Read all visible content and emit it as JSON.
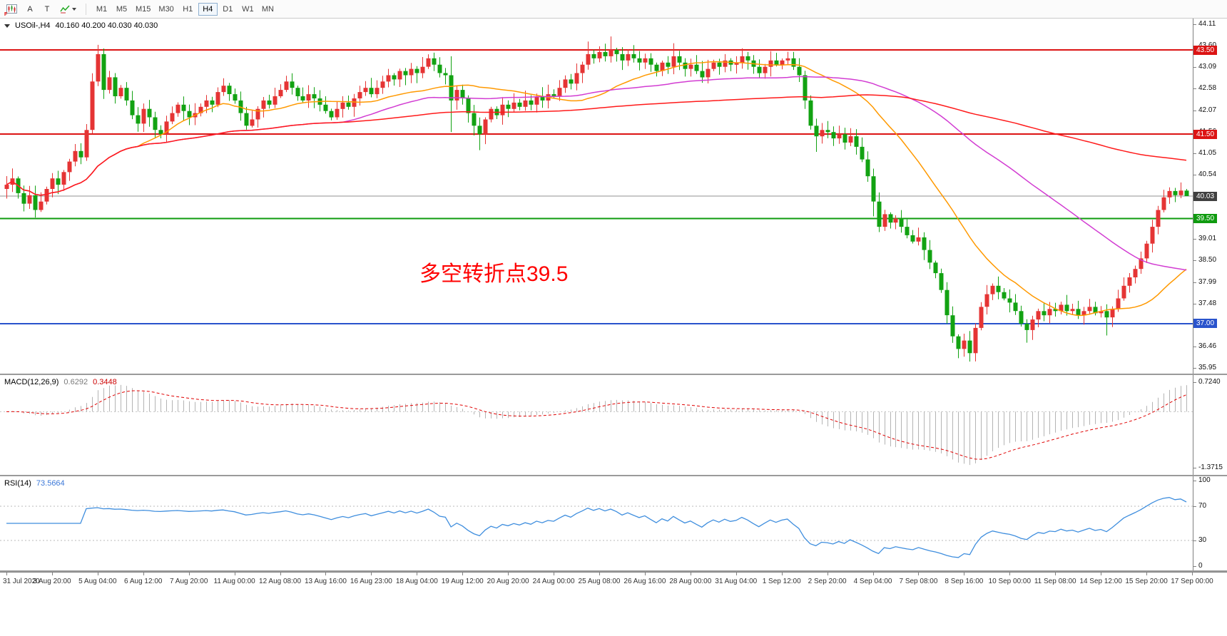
{
  "toolbar": {
    "tool_buttons": [
      {
        "name": "chart-window"
      },
      {
        "name": "cursor",
        "label": "A"
      },
      {
        "name": "text",
        "label": "T"
      },
      {
        "name": "indicators"
      }
    ],
    "corner_badge": "F",
    "timeframes": [
      "M1",
      "M5",
      "M15",
      "M30",
      "H1",
      "H4",
      "D1",
      "W1",
      "MN"
    ],
    "active_timeframe": "H4"
  },
  "main_chart": {
    "title": "USOil-,H4",
    "ohlc_text": "40.160 40.200 40.030 40.030",
    "annotation": {
      "text": "多空转折点39.5",
      "color": "#ff0000"
    },
    "price_scale_labels": [
      "44.11",
      "43.60",
      "43.09",
      "42.58",
      "42.07",
      "41.56",
      "41.05",
      "40.54",
      "40.03",
      "39.52",
      "39.01",
      "38.50",
      "37.99",
      "37.48",
      "36.97",
      "36.46",
      "35.95"
    ],
    "levels": [
      {
        "value": 43.5,
        "label": "43.50",
        "color": "#dc1414",
        "width": 2
      },
      {
        "value": 41.5,
        "label": "41.50",
        "color": "#dc1414",
        "width": 2
      },
      {
        "value": 39.5,
        "label": "39.50",
        "color": "#0f9b0f",
        "width": 2
      },
      {
        "value": 37.0,
        "label": "37.00",
        "color": "#2953cc",
        "width": 2
      }
    ],
    "current_price": {
      "value": 40.03,
      "label": "40.03",
      "color": "#404040"
    }
  },
  "macd_panel": {
    "label": "MACD(12,26,9)",
    "values": [
      "0.6292",
      "0.3448"
    ],
    "axis_labels": [
      {
        "value": 0.724,
        "text": "0.7240"
      },
      {
        "value": -1.3715,
        "text": "-1.3715"
      }
    ],
    "colors": {
      "histogram": "#b4b4b4",
      "signal": "#e00000"
    }
  },
  "rsi_panel": {
    "label": "RSI(14)",
    "value": "73.5664",
    "axis_labels": [
      {
        "value": 100,
        "text": "100"
      },
      {
        "value": 70,
        "text": "70"
      },
      {
        "value": 30,
        "text": "30"
      },
      {
        "value": 0,
        "text": "0"
      }
    ],
    "color": "#3f8ede"
  },
  "chart_data": {
    "type": "candlestick",
    "symbol": "USOil-",
    "timeframe": "H4",
    "ylim": [
      35.95,
      44.11
    ],
    "up_color": "#e53434",
    "down_color": "#12a212",
    "closes": [
      40.3,
      40.45,
      40.1,
      39.85,
      40.05,
      39.7,
      39.9,
      40.2,
      40.45,
      40.3,
      40.6,
      40.85,
      41.1,
      40.95,
      41.6,
      42.75,
      43.4,
      42.55,
      42.85,
      42.4,
      42.6,
      42.3,
      41.95,
      41.75,
      42.1,
      41.9,
      41.6,
      41.5,
      41.8,
      42.0,
      42.2,
      42.05,
      41.9,
      42.0,
      42.15,
      42.3,
      42.2,
      42.5,
      42.65,
      42.45,
      42.3,
      42.0,
      41.7,
      41.85,
      42.1,
      42.3,
      42.2,
      42.4,
      42.55,
      42.75,
      42.6,
      42.4,
      42.3,
      42.45,
      42.35,
      42.2,
      42.05,
      41.9,
      42.1,
      42.25,
      42.15,
      42.35,
      42.5,
      42.6,
      42.45,
      42.6,
      42.75,
      42.9,
      42.8,
      43.0,
      42.9,
      43.05,
      42.95,
      43.1,
      43.3,
      43.15,
      42.95,
      42.9,
      42.3,
      42.55,
      42.35,
      42.0,
      41.7,
      41.5,
      41.85,
      42.1,
      41.95,
      42.2,
      42.1,
      42.25,
      42.15,
      42.3,
      42.2,
      42.4,
      42.3,
      42.45,
      42.4,
      42.6,
      42.8,
      42.7,
      42.95,
      43.15,
      43.4,
      43.3,
      43.45,
      43.35,
      43.5,
      43.4,
      43.25,
      43.4,
      43.3,
      43.2,
      43.3,
      43.15,
      43.0,
      43.2,
      43.1,
      43.35,
      43.2,
      43.05,
      43.15,
      43.0,
      42.85,
      43.05,
      43.2,
      43.1,
      43.25,
      43.15,
      43.2,
      43.35,
      43.25,
      43.1,
      42.95,
      43.1,
      43.25,
      43.15,
      43.25,
      43.3,
      43.1,
      42.9,
      42.3,
      41.7,
      41.45,
      41.6,
      41.55,
      41.4,
      41.5,
      41.3,
      41.45,
      41.2,
      40.9,
      40.5,
      39.9,
      39.3,
      39.6,
      39.4,
      39.5,
      39.3,
      39.1,
      38.95,
      39.05,
      38.75,
      38.45,
      38.2,
      37.8,
      37.2,
      36.7,
      36.4,
      36.6,
      36.3,
      36.9,
      37.4,
      37.7,
      37.9,
      37.75,
      37.6,
      37.5,
      37.3,
      37.0,
      36.85,
      37.1,
      37.3,
      37.2,
      37.35,
      37.3,
      37.45,
      37.3,
      37.35,
      37.2,
      37.3,
      37.4,
      37.25,
      37.3,
      37.15,
      37.35,
      37.6,
      37.9,
      38.1,
      38.3,
      38.55,
      38.9,
      39.3,
      39.7,
      40.0,
      40.15,
      40.05,
      40.16,
      40.03
    ],
    "overrides": {
      "5": {
        "low": 39.52
      },
      "16": {
        "high": 43.62
      },
      "78": {
        "high": 43.35,
        "low": 41.55
      },
      "83": {
        "low": 41.12
      },
      "102": {
        "high": 43.7
      },
      "106": {
        "high": 43.82
      },
      "117": {
        "high": 43.66
      },
      "142": {
        "low": 41.08
      },
      "152": {
        "low": 39.55
      },
      "167": {
        "low": 36.18
      },
      "169": {
        "low": 36.1
      },
      "179": {
        "low": 36.55
      },
      "193": {
        "low": 36.72
      },
      "207": {
        "open": 40.16,
        "high": 40.2,
        "low": 40.03,
        "close": 40.03
      }
    },
    "ma": [
      {
        "period": 24,
        "color": "#ff9900",
        "name": "fast"
      },
      {
        "period": 60,
        "color": "#d23cd2",
        "name": "mid"
      },
      {
        "period": 144,
        "color": "#ff1a1a",
        "name": "slow"
      }
    ],
    "macd": {
      "fast": 12,
      "slow": 26,
      "signal": 9
    },
    "rsi": {
      "period": 14,
      "levels": [
        70,
        30
      ]
    },
    "x_labels": [
      "31 Jul 2020",
      "3 Aug 20:00",
      "5 Aug 04:00",
      "6 Aug 12:00",
      "7 Aug 20:00",
      "11 Aug 00:00",
      "12 Aug 08:00",
      "13 Aug 16:00",
      "16 Aug 23:00",
      "18 Aug 04:00",
      "19 Aug 12:00",
      "20 Aug 20:00",
      "24 Aug 00:00",
      "25 Aug 08:00",
      "26 Aug 16:00",
      "28 Aug 00:00",
      "31 Aug 04:00",
      "1 Sep 12:00",
      "2 Sep 20:00",
      "4 Sep 04:00",
      "7 Sep 08:00",
      "8 Sep 16:00",
      "10 Sep 00:00",
      "11 Sep 08:00",
      "14 Sep 12:00",
      "15 Sep 20:00",
      "17 Sep 00:00"
    ],
    "bars_per_label": 8
  }
}
